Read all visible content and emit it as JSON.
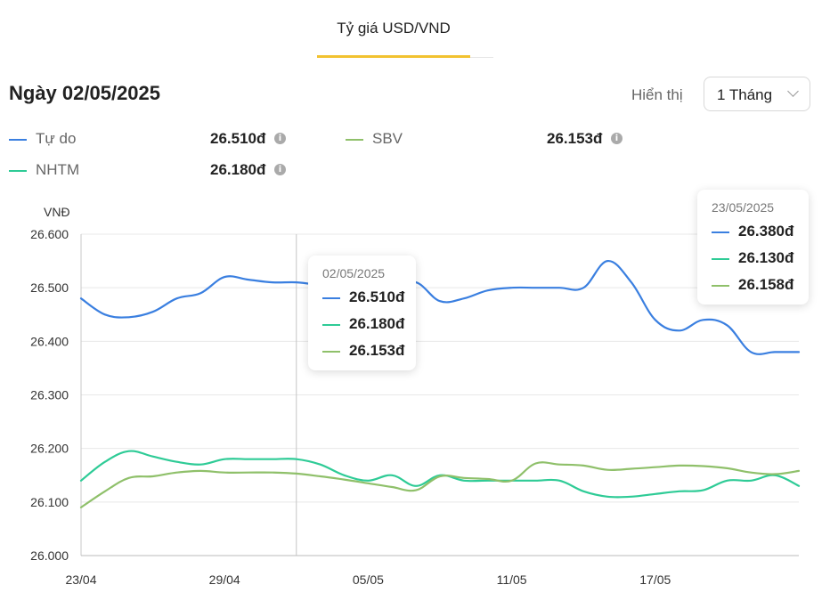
{
  "tab": {
    "label": "Tỷ giá USD/VND"
  },
  "header": {
    "date_title": "Ngày 02/05/2025",
    "display_label": "Hiển thị",
    "range_value": "1 Tháng"
  },
  "legend": [
    {
      "name": "Tự do",
      "value": "26.510đ",
      "color": "#3a7fe0"
    },
    {
      "name": "SBV",
      "value": "26.153đ",
      "color": "#8fc06a"
    },
    {
      "name": "NHTM",
      "value": "26.180đ",
      "color": "#2ecb96"
    }
  ],
  "tooltip_main": {
    "date": "02/05/2025",
    "values": [
      "26.510đ",
      "26.180đ",
      "26.153đ"
    ]
  },
  "tooltip_edge": {
    "date": "23/05/2025",
    "values": [
      "26.380đ",
      "26.130đ",
      "26.158đ"
    ]
  },
  "chart_data": {
    "type": "line",
    "ylabel": "VNĐ",
    "ylim": [
      26000,
      26600
    ],
    "yticks": [
      26000,
      26100,
      26200,
      26300,
      26400,
      26500,
      26600
    ],
    "ytick_labels": [
      "26.000",
      "26.100",
      "26.200",
      "26.300",
      "26.400",
      "26.500",
      "26.600"
    ],
    "x": [
      "23/04",
      "24/04",
      "25/04",
      "26/04",
      "27/04",
      "28/04",
      "29/04",
      "30/04",
      "01/05",
      "02/05",
      "03/05",
      "04/05",
      "05/05",
      "06/05",
      "07/05",
      "08/05",
      "09/05",
      "10/05",
      "11/05",
      "12/05",
      "13/05",
      "14/05",
      "15/05",
      "16/05",
      "17/05",
      "18/05",
      "19/05",
      "20/05",
      "21/05",
      "22/05",
      "23/05"
    ],
    "xtick_labels": [
      "23/04",
      "29/04",
      "05/05",
      "11/05",
      "17/05"
    ],
    "highlight_x": "02/05",
    "grid": true,
    "series": [
      {
        "name": "Tự do",
        "color": "#3a7fe0",
        "values": [
          26480,
          26450,
          26445,
          26455,
          26480,
          26490,
          26520,
          26515,
          26510,
          26510,
          26505,
          26500,
          26500,
          26500,
          26510,
          26475,
          26480,
          26495,
          26500,
          26500,
          26500,
          26500,
          26550,
          26510,
          26440,
          26420,
          26440,
          26430,
          26380,
          26380,
          26380
        ]
      },
      {
        "name": "NHTM",
        "color": "#2ecb96",
        "values": [
          26140,
          26175,
          26195,
          26185,
          26175,
          26170,
          26180,
          26180,
          26180,
          26180,
          26170,
          26150,
          26140,
          26150,
          26130,
          26150,
          26140,
          26140,
          26140,
          26140,
          26140,
          26120,
          26110,
          26110,
          26115,
          26120,
          26122,
          26140,
          26140,
          26150,
          26130
        ]
      },
      {
        "name": "SBV",
        "color": "#8fc06a",
        "values": [
          26090,
          26120,
          26145,
          26148,
          26155,
          26158,
          26155,
          26155,
          26155,
          26153,
          26148,
          26142,
          26135,
          26128,
          26122,
          26148,
          26145,
          26143,
          26140,
          26172,
          26170,
          26168,
          26160,
          26162,
          26165,
          26168,
          26167,
          26163,
          26155,
          26152,
          26158
        ]
      }
    ]
  }
}
